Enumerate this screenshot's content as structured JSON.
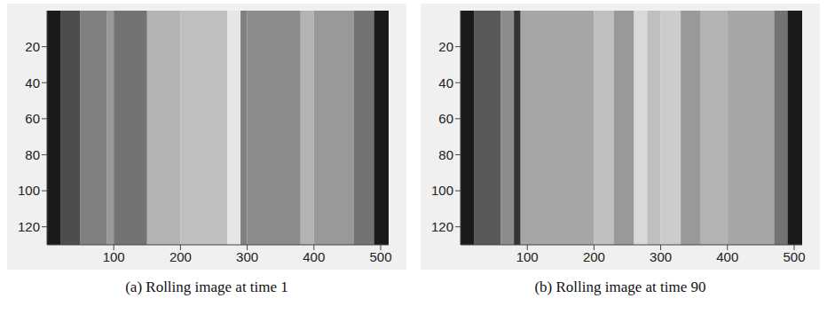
{
  "chart_data": [
    {
      "type": "heatmap",
      "caption": "(a) Rolling image at time 1",
      "xlim": [
        0,
        512
      ],
      "xticks": [
        100,
        200,
        300,
        400,
        500
      ],
      "ylim": [
        0,
        130
      ],
      "yticks": [
        20,
        40,
        60,
        80,
        100,
        120
      ],
      "column_edges": [
        0,
        20,
        50,
        90,
        100,
        150,
        200,
        270,
        290,
        300,
        380,
        400,
        460,
        490,
        512
      ],
      "intensity": [
        0.1,
        0.3,
        0.5,
        0.6,
        0.45,
        0.7,
        0.75,
        0.9,
        0.5,
        0.55,
        0.7,
        0.6,
        0.45,
        0.1
      ],
      "color": "gray"
    },
    {
      "type": "heatmap",
      "caption": "(b) Rolling image at time 90",
      "xlim": [
        0,
        512
      ],
      "xticks": [
        100,
        200,
        300,
        400,
        500
      ],
      "ylim": [
        0,
        130
      ],
      "yticks": [
        20,
        40,
        60,
        80,
        100,
        120
      ],
      "column_edges": [
        0,
        20,
        60,
        80,
        90,
        200,
        230,
        260,
        280,
        300,
        330,
        360,
        400,
        470,
        490,
        512
      ],
      "intensity": [
        0.1,
        0.35,
        0.55,
        0.2,
        0.65,
        0.75,
        0.6,
        0.85,
        0.75,
        0.8,
        0.6,
        0.7,
        0.65,
        0.45,
        0.1
      ],
      "color": "gray"
    }
  ]
}
